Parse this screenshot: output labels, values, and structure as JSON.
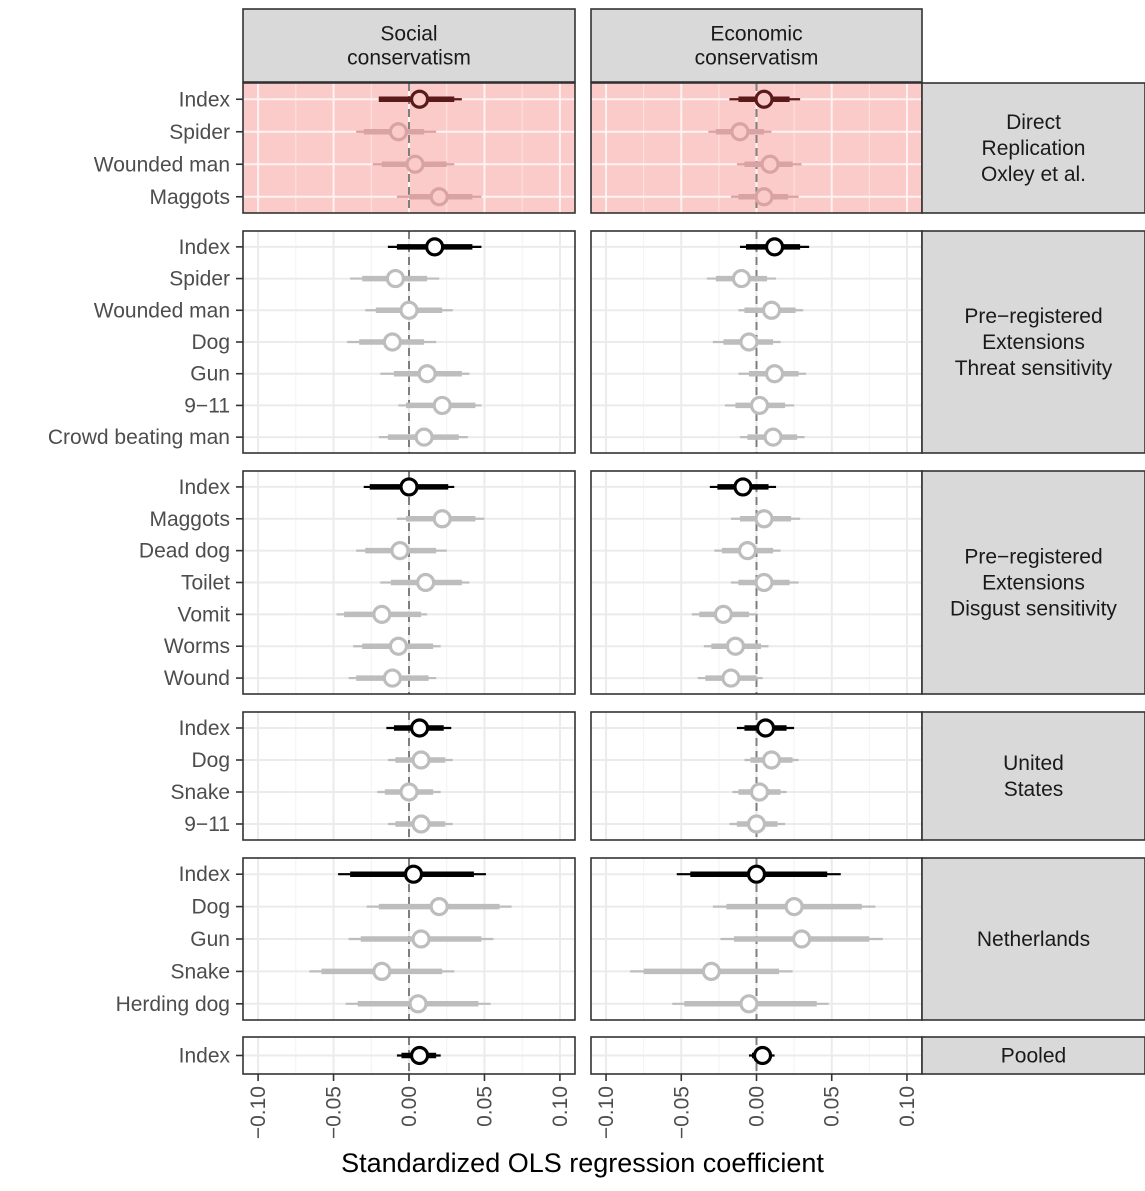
{
  "chart_data": {
    "type": "forest",
    "xlabel": "Standardized OLS regression coefficient",
    "xlim": [
      -0.11,
      0.11
    ],
    "xticks": [
      -0.1,
      -0.05,
      0.0,
      0.05,
      0.1
    ],
    "xtick_labels": [
      "−0.10",
      "−0.05",
      "0.00",
      "0.05",
      "0.10"
    ],
    "reference_line": 0,
    "columns": [
      "Social\nconservatism",
      "Economic\nconservatism"
    ],
    "highlight_color": "#fbcbc9",
    "colors": {
      "index": "#000000",
      "index_highlight": "#5a1a1a",
      "item": "#bdbdbd",
      "item_highlight": "#d9a3a3"
    },
    "rows": [
      {
        "strip": "Direct\nReplication\nOxley et al.",
        "highlight": true,
        "items": [
          {
            "label": "Index",
            "social": {
              "est": 0.007,
              "ci90": [
                -0.02,
                0.03
              ],
              "ci95": [
                -0.02,
                0.035
              ]
            },
            "economic": {
              "est": 0.005,
              "ci90": [
                -0.012,
                0.022
              ],
              "ci95": [
                -0.018,
                0.029
              ]
            }
          },
          {
            "label": "Spider",
            "social": {
              "est": -0.007,
              "ci90": [
                -0.03,
                0.01
              ],
              "ci95": [
                -0.035,
                0.018
              ]
            },
            "economic": {
              "est": -0.011,
              "ci90": [
                -0.027,
                0.005
              ],
              "ci95": [
                -0.032,
                0.01
              ]
            }
          },
          {
            "label": "Wounded man",
            "social": {
              "est": 0.004,
              "ci90": [
                -0.018,
                0.025
              ],
              "ci95": [
                -0.024,
                0.03
              ]
            },
            "economic": {
              "est": 0.009,
              "ci90": [
                -0.008,
                0.024
              ],
              "ci95": [
                -0.013,
                0.03
              ]
            }
          },
          {
            "label": "Maggots",
            "social": {
              "est": 0.02,
              "ci90": [
                0.0,
                0.042
              ],
              "ci95": [
                -0.008,
                0.048
              ]
            },
            "economic": {
              "est": 0.005,
              "ci90": [
                -0.012,
                0.021
              ],
              "ci95": [
                -0.017,
                0.028
              ]
            }
          }
        ]
      },
      {
        "strip": "Pre−registered\nExtensions\nThreat sensitivity",
        "highlight": false,
        "items": [
          {
            "label": "Index",
            "social": {
              "est": 0.017,
              "ci90": [
                -0.008,
                0.042
              ],
              "ci95": [
                -0.014,
                0.048
              ]
            },
            "economic": {
              "est": 0.012,
              "ci90": [
                -0.007,
                0.029
              ],
              "ci95": [
                -0.011,
                0.035
              ]
            }
          },
          {
            "label": "Spider",
            "social": {
              "est": -0.009,
              "ci90": [
                -0.031,
                0.012
              ],
              "ci95": [
                -0.039,
                0.02
              ]
            },
            "economic": {
              "est": -0.01,
              "ci90": [
                -0.027,
                0.007
              ],
              "ci95": [
                -0.033,
                0.013
              ]
            }
          },
          {
            "label": "Wounded man",
            "social": {
              "est": 0.0,
              "ci90": [
                -0.022,
                0.022
              ],
              "ci95": [
                -0.029,
                0.029
              ]
            },
            "economic": {
              "est": 0.01,
              "ci90": [
                -0.008,
                0.026
              ],
              "ci95": [
                -0.012,
                0.031
              ]
            }
          },
          {
            "label": "Dog",
            "social": {
              "est": -0.011,
              "ci90": [
                -0.033,
                0.01
              ],
              "ci95": [
                -0.041,
                0.018
              ]
            },
            "economic": {
              "est": -0.005,
              "ci90": [
                -0.022,
                0.011
              ],
              "ci95": [
                -0.029,
                0.016
              ]
            }
          },
          {
            "label": "Gun",
            "social": {
              "est": 0.012,
              "ci90": [
                -0.01,
                0.035
              ],
              "ci95": [
                -0.019,
                0.04
              ]
            },
            "economic": {
              "est": 0.012,
              "ci90": [
                -0.005,
                0.028
              ],
              "ci95": [
                -0.012,
                0.033
              ]
            }
          },
          {
            "label": "9−11",
            "social": {
              "est": 0.022,
              "ci90": [
                -0.002,
                0.044
              ],
              "ci95": [
                -0.007,
                0.048
              ]
            },
            "economic": {
              "est": 0.002,
              "ci90": [
                -0.014,
                0.019
              ],
              "ci95": [
                -0.021,
                0.025
              ]
            }
          },
          {
            "label": "Crowd beating man",
            "social": {
              "est": 0.01,
              "ci90": [
                -0.014,
                0.033
              ],
              "ci95": [
                -0.02,
                0.039
              ]
            },
            "economic": {
              "est": 0.011,
              "ci90": [
                -0.006,
                0.027
              ],
              "ci95": [
                -0.011,
                0.032
              ]
            }
          }
        ]
      },
      {
        "strip": "Pre−registered\nExtensions\nDisgust sensitivity",
        "highlight": false,
        "items": [
          {
            "label": "Index",
            "social": {
              "est": 0.0,
              "ci90": [
                -0.026,
                0.026
              ],
              "ci95": [
                -0.03,
                0.03
              ]
            },
            "economic": {
              "est": -0.009,
              "ci90": [
                -0.026,
                0.008
              ],
              "ci95": [
                -0.031,
                0.013
              ]
            }
          },
          {
            "label": "Maggots",
            "social": {
              "est": 0.022,
              "ci90": [
                -0.002,
                0.044
              ],
              "ci95": [
                -0.008,
                0.05
              ]
            },
            "economic": {
              "est": 0.005,
              "ci90": [
                -0.011,
                0.023
              ],
              "ci95": [
                -0.017,
                0.029
              ]
            }
          },
          {
            "label": "Dead dog",
            "social": {
              "est": -0.006,
              "ci90": [
                -0.029,
                0.018
              ],
              "ci95": [
                -0.035,
                0.025
              ]
            },
            "economic": {
              "est": -0.006,
              "ci90": [
                -0.023,
                0.011
              ],
              "ci95": [
                -0.028,
                0.016
              ]
            }
          },
          {
            "label": "Toilet",
            "social": {
              "est": 0.011,
              "ci90": [
                -0.012,
                0.035
              ],
              "ci95": [
                -0.019,
                0.04
              ]
            },
            "economic": {
              "est": 0.005,
              "ci90": [
                -0.012,
                0.022
              ],
              "ci95": [
                -0.017,
                0.028
              ]
            }
          },
          {
            "label": "Vomit",
            "social": {
              "est": -0.018,
              "ci90": [
                -0.043,
                0.008
              ],
              "ci95": [
                -0.048,
                0.012
              ]
            },
            "economic": {
              "est": -0.022,
              "ci90": [
                -0.038,
                -0.005
              ],
              "ci95": [
                -0.043,
                0.0
              ]
            }
          },
          {
            "label": "Worms",
            "social": {
              "est": -0.007,
              "ci90": [
                -0.031,
                0.016
              ],
              "ci95": [
                -0.037,
                0.021
              ]
            },
            "economic": {
              "est": -0.014,
              "ci90": [
                -0.03,
                0.003
              ],
              "ci95": [
                -0.035,
                0.008
              ]
            }
          },
          {
            "label": "Wound",
            "social": {
              "est": -0.011,
              "ci90": [
                -0.035,
                0.013
              ],
              "ci95": [
                -0.04,
                0.018
              ]
            },
            "economic": {
              "est": -0.017,
              "ci90": [
                -0.034,
                0.0
              ],
              "ci95": [
                -0.039,
                0.004
              ]
            }
          }
        ]
      },
      {
        "strip": "United\nStates",
        "highlight": false,
        "items": [
          {
            "label": "Index",
            "social": {
              "est": 0.007,
              "ci90": [
                -0.01,
                0.023
              ],
              "ci95": [
                -0.015,
                0.028
              ]
            },
            "economic": {
              "est": 0.006,
              "ci90": [
                -0.008,
                0.02
              ],
              "ci95": [
                -0.013,
                0.025
              ]
            }
          },
          {
            "label": "Dog",
            "social": {
              "est": 0.008,
              "ci90": [
                -0.009,
                0.024
              ],
              "ci95": [
                -0.014,
                0.029
              ]
            },
            "economic": {
              "est": 0.01,
              "ci90": [
                -0.004,
                0.024
              ],
              "ci95": [
                -0.008,
                0.028
              ]
            }
          },
          {
            "label": "Snake",
            "social": {
              "est": 0.0,
              "ci90": [
                -0.016,
                0.016
              ],
              "ci95": [
                -0.021,
                0.021
              ]
            },
            "economic": {
              "est": 0.002,
              "ci90": [
                -0.012,
                0.016
              ],
              "ci95": [
                -0.016,
                0.02
              ]
            }
          },
          {
            "label": "9−11",
            "social": {
              "est": 0.008,
              "ci90": [
                -0.009,
                0.024
              ],
              "ci95": [
                -0.014,
                0.029
              ]
            },
            "economic": {
              "est": 0.0,
              "ci90": [
                -0.013,
                0.014
              ],
              "ci95": [
                -0.018,
                0.019
              ]
            }
          }
        ]
      },
      {
        "strip": "Netherlands",
        "highlight": false,
        "items": [
          {
            "label": "Index",
            "social": {
              "est": 0.003,
              "ci90": [
                -0.039,
                0.043
              ],
              "ci95": [
                -0.047,
                0.051
              ]
            },
            "economic": {
              "est": 0.0,
              "ci90": [
                -0.044,
                0.047
              ],
              "ci95": [
                -0.053,
                0.056
              ]
            }
          },
          {
            "label": "Dog",
            "social": {
              "est": 0.02,
              "ci90": [
                -0.02,
                0.06
              ],
              "ci95": [
                -0.028,
                0.068
              ]
            },
            "economic": {
              "est": 0.025,
              "ci90": [
                -0.02,
                0.07
              ],
              "ci95": [
                -0.029,
                0.079
              ]
            }
          },
          {
            "label": "Gun",
            "social": {
              "est": 0.008,
              "ci90": [
                -0.032,
                0.048
              ],
              "ci95": [
                -0.04,
                0.056
              ]
            },
            "economic": {
              "est": 0.03,
              "ci90": [
                -0.015,
                0.075
              ],
              "ci95": [
                -0.024,
                0.084
              ]
            }
          },
          {
            "label": "Snake",
            "social": {
              "est": -0.018,
              "ci90": [
                -0.058,
                0.022
              ],
              "ci95": [
                -0.066,
                0.03
              ]
            },
            "economic": {
              "est": -0.03,
              "ci90": [
                -0.075,
                0.015
              ],
              "ci95": [
                -0.084,
                0.024
              ]
            }
          },
          {
            "label": "Herding dog",
            "social": {
              "est": 0.006,
              "ci90": [
                -0.034,
                0.046
              ],
              "ci95": [
                -0.042,
                0.054
              ]
            },
            "economic": {
              "est": -0.005,
              "ci90": [
                -0.048,
                0.04
              ],
              "ci95": [
                -0.056,
                0.048
              ]
            }
          }
        ]
      },
      {
        "strip": "Pooled",
        "highlight": false,
        "items": [
          {
            "label": "Index",
            "social": {
              "est": 0.007,
              "ci90": [
                -0.005,
                0.018
              ],
              "ci95": [
                -0.008,
                0.021
              ]
            },
            "economic": {
              "est": 0.004,
              "ci90": [
                -0.003,
                0.01
              ],
              "ci95": [
                -0.005,
                0.012
              ]
            }
          }
        ]
      }
    ]
  }
}
